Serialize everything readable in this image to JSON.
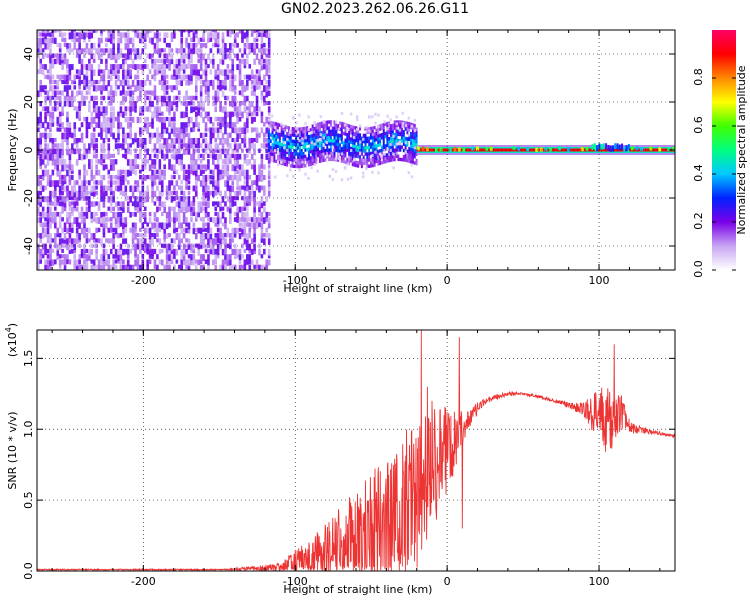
{
  "figure": {
    "title": "GN02.2023.262.06.26.G11"
  },
  "chart_data": [
    {
      "type": "heatmap",
      "xlabel": "Height of straight line (km)",
      "ylabel": "Frequency (Hz)",
      "xlim": [
        -270,
        150
      ],
      "ylim": [
        -50,
        50
      ],
      "xticks": [
        -200,
        -100,
        0,
        100
      ],
      "yticks": [
        -40,
        -20,
        0,
        20,
        40
      ],
      "xtick_labels": [
        "-200",
        "-100",
        "0",
        "100"
      ],
      "ytick_labels": [
        "-40",
        "-20",
        "0",
        "20",
        "40"
      ],
      "colorbar": {
        "label": "Normalized spectral amplitude",
        "range": [
          0.0,
          1.0
        ],
        "ticks": [
          0.0,
          0.2,
          0.4,
          0.6,
          0.8
        ],
        "tick_labels": [
          "0.0",
          "0.2",
          "0.4",
          "0.6",
          "0.8"
        ],
        "colormap": [
          "#ffffff",
          "#c7a6f2",
          "#7a00e8",
          "#0022ff",
          "#00c8ff",
          "#00ff80",
          "#40ff00",
          "#ffff00",
          "#ff8800",
          "#ff0000",
          "#ff0066"
        ]
      },
      "regions": [
        {
          "description": "noise",
          "x_range": [
            -270,
            -118
          ],
          "f_range": [
            -50,
            50
          ],
          "amplitude": 0.05
        },
        {
          "description": "broadband signal",
          "x_range": [
            -118,
            -20
          ],
          "f_center": 2,
          "f_halfwidth": 8,
          "amplitude": 0.3
        },
        {
          "description": "narrow carrier",
          "x_range": [
            -20,
            150
          ],
          "f_center": 0,
          "f_halfwidth": 1,
          "amplitude": 0.9
        }
      ],
      "grid": true
    },
    {
      "type": "line",
      "xlabel": "Height of straight line (km)",
      "ylabel": "SNR (10 * v/v)",
      "multiplier_label": "(x10",
      "multiplier_exponent": "4",
      "multiplier_close": ")",
      "xlim": [
        -270,
        150
      ],
      "ylim": [
        0,
        1.7
      ],
      "xticks": [
        -200,
        -100,
        0,
        100
      ],
      "yticks": [
        0.0,
        0.5,
        1.0,
        1.5
      ],
      "xtick_labels": [
        "-200",
        "-100",
        "0",
        "100"
      ],
      "ytick_labels": [
        "0.0",
        "0.5",
        "1.0",
        "1.5"
      ],
      "series": [
        {
          "color": "#ee3333",
          "x": [
            -270,
            -250,
            -200,
            -150,
            -120,
            -110,
            -100,
            -90,
            -80,
            -70,
            -60,
            -50,
            -40,
            -30,
            -25,
            -20,
            -15,
            -10,
            -5,
            0,
            5,
            10,
            15,
            20,
            25,
            30,
            40,
            50,
            60,
            70,
            80,
            90,
            95,
            100,
            105,
            110,
            115,
            120,
            125,
            130,
            140,
            150
          ],
          "y": [
            0.01,
            0.01,
            0.01,
            0.01,
            0.02,
            0.02,
            0.05,
            0.08,
            0.12,
            0.18,
            0.22,
            0.3,
            0.35,
            0.42,
            0.5,
            0.55,
            0.62,
            0.7,
            0.8,
            0.85,
            0.95,
            1.0,
            1.08,
            1.15,
            1.2,
            1.22,
            1.25,
            1.25,
            1.23,
            1.2,
            1.17,
            1.14,
            1.12,
            1.1,
            1.05,
            1.1,
            1.12,
            1.02,
            1.0,
            0.99,
            0.97,
            0.95
          ],
          "noise_envelope": [
            0,
            0,
            0,
            0,
            0.02,
            0.04,
            0.1,
            0.15,
            0.22,
            0.3,
            0.35,
            0.4,
            0.45,
            0.5,
            0.55,
            0.55,
            0.5,
            0.45,
            0.4,
            0.3,
            0.25,
            0.12,
            0.06,
            0.04,
            0.02,
            0.02,
            0.01,
            0.01,
            0.01,
            0.01,
            0.02,
            0.05,
            0.12,
            0.2,
            0.25,
            0.2,
            0.12,
            0.05,
            0.03,
            0.02,
            0.01,
            0.01
          ],
          "spikes": [
            {
              "x": -17,
              "y": 1.7
            },
            {
              "x": -13,
              "y": 1.3
            },
            {
              "x": -10,
              "y": 1.2
            },
            {
              "x": 8,
              "y": 1.65
            },
            {
              "x": 10,
              "y": 0.3
            },
            {
              "x": 110,
              "y": 1.6
            }
          ]
        }
      ],
      "grid": true
    }
  ]
}
